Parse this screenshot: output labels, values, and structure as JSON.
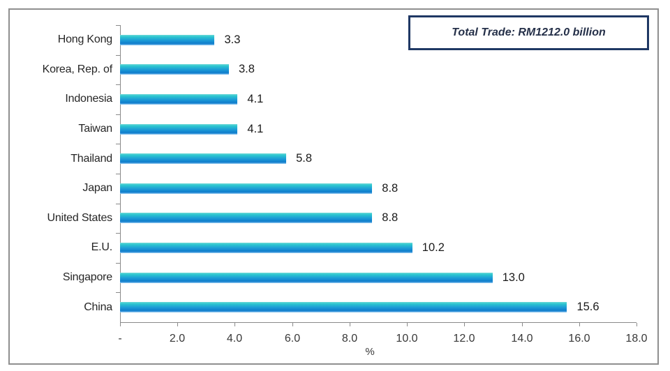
{
  "annotation": {
    "text": "Total Trade: RM1212.0 billion",
    "border_color": "#1f3864"
  },
  "chart_data": {
    "type": "bar",
    "orientation": "horizontal",
    "title": "",
    "xlabel": "%",
    "ylabel": "",
    "xlim": [
      0,
      18
    ],
    "grid": false,
    "legend": false,
    "annotation": "Total Trade: RM1212.0 billion",
    "categories": [
      "Hong Kong",
      "Korea, Rep. of",
      "Indonesia",
      "Taiwan",
      "Thailand",
      "Japan",
      "United States",
      "E.U.",
      "Singapore",
      "China"
    ],
    "values": [
      3.3,
      3.8,
      4.1,
      4.1,
      5.8,
      8.8,
      8.8,
      10.2,
      13.0,
      15.6
    ],
    "rows": [
      {
        "label": "Hong Kong",
        "value": 3.3,
        "value_label": "3.3"
      },
      {
        "label": "Korea, Rep. of",
        "value": 3.8,
        "value_label": "3.8"
      },
      {
        "label": "Indonesia",
        "value": 4.1,
        "value_label": "4.1"
      },
      {
        "label": "Taiwan",
        "value": 4.1,
        "value_label": "4.1"
      },
      {
        "label": "Thailand",
        "value": 5.8,
        "value_label": "5.8"
      },
      {
        "label": "Japan",
        "value": 8.8,
        "value_label": "8.8"
      },
      {
        "label": "United States",
        "value": 8.8,
        "value_label": "8.8"
      },
      {
        "label": "E.U.",
        "value": 10.2,
        "value_label": "10.2"
      },
      {
        "label": "Singapore",
        "value": 13.0,
        "value_label": "13.0"
      },
      {
        "label": "China",
        "value": 15.6,
        "value_label": "15.6"
      }
    ],
    "xticks": [
      "-",
      "2.0",
      "4.0",
      "6.0",
      "8.0",
      "10.0",
      "12.0",
      "14.0",
      "16.0",
      "18.0"
    ],
    "colors": {
      "bar_gradient_top": "#2cc6cf",
      "bar_gradient_mid": "#1b99d6",
      "bar_gradient_bottom": "#0e7ccb",
      "axis": "#8a8a8a",
      "text": "#262626",
      "frame_border": "#8f8f8f",
      "annotation_border": "#1f3864"
    }
  }
}
